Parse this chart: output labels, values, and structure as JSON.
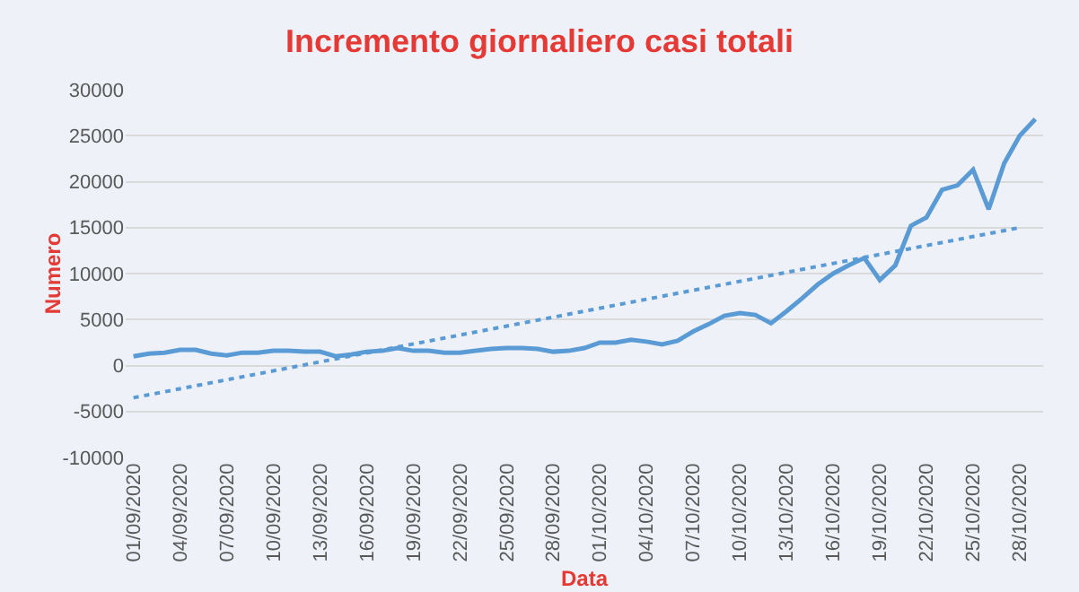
{
  "chart_data": {
    "type": "line",
    "title": "Incremento giornaliero casi totali",
    "xlabel": "Data",
    "ylabel": "Numero",
    "categories": [
      "01/09/2020",
      null,
      null,
      "04/09/2020",
      null,
      null,
      "07/09/2020",
      null,
      null,
      "10/09/2020",
      null,
      null,
      "13/09/2020",
      null,
      null,
      "16/09/2020",
      null,
      null,
      "19/09/2020",
      null,
      null,
      "22/09/2020",
      null,
      null,
      "25/09/2020",
      null,
      null,
      "28/09/2020",
      null,
      null,
      "01/10/2020",
      null,
      null,
      "04/10/2020",
      null,
      null,
      "07/10/2020",
      null,
      null,
      "10/10/2020",
      null,
      null,
      "13/10/2020",
      null,
      null,
      "16/10/2020",
      null,
      null,
      "19/10/2020",
      null,
      null,
      "22/10/2020",
      null,
      null,
      "25/10/2020",
      null,
      null,
      "28/10/2020",
      null
    ],
    "series": [
      {
        "color": "#5b9bd5",
        "line_style": "solid",
        "values": [
          1000,
          1300,
          1400,
          1700,
          1700,
          1300,
          1100,
          1400,
          1400,
          1600,
          1600,
          1500,
          1500,
          1000,
          1200,
          1500,
          1600,
          1900,
          1600,
          1600,
          1400,
          1400,
          1600,
          1800,
          1900,
          1900,
          1800,
          1500,
          1600,
          1900,
          2500,
          2500,
          2800,
          2600,
          2300,
          2700,
          3700,
          4500,
          5400,
          5700,
          5500,
          4600,
          5900,
          7300,
          8800,
          10000,
          10900,
          11700,
          9300,
          10900,
          15200,
          16100,
          19100,
          19600,
          21300,
          17000,
          22000,
          25000,
          26800
        ]
      },
      {
        "type": "line",
        "color": "#5b9bd5",
        "line_style": "dotted",
        "x": [
          "01/09/2020",
          "28/10/2020"
        ],
        "values": [
          -3500,
          15000
        ]
      }
    ],
    "ylim": [
      -10000,
      30000
    ],
    "yticks": [
      -10000,
      -5000,
      0,
      5000,
      10000,
      15000,
      20000,
      25000,
      30000
    ],
    "grid": "y",
    "marker": "none"
  }
}
